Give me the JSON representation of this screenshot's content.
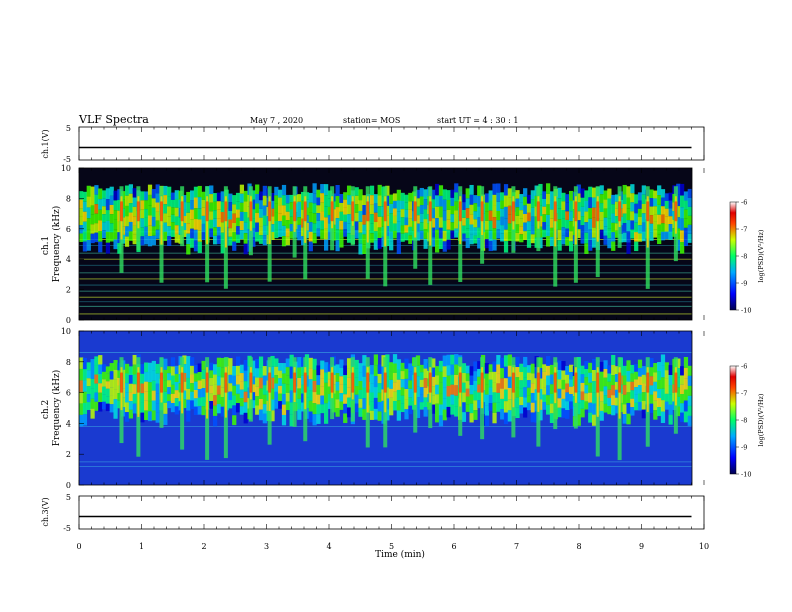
{
  "header": {
    "title": "VLF Spectra",
    "date": "May 7 , 2020",
    "station": "station= MOS",
    "start": "start UT = 4 : 30 : 1"
  },
  "chart_data": [
    {
      "type": "line",
      "name": "ch1-waveform",
      "ylabel": "ch.1(V)",
      "ylim": [
        -5,
        5
      ],
      "y_ticks": [
        "5",
        "-5"
      ],
      "xlim": [
        0,
        10
      ],
      "x": [
        0,
        9.8
      ],
      "values": [
        -1.2,
        -1.2
      ]
    },
    {
      "type": "heatmap",
      "name": "ch1-spectrogram",
      "ylabel": "ch.1\nFrequency (kHz)",
      "ylim": [
        0,
        10
      ],
      "y_ticks": [
        "0",
        "2",
        "4",
        "6",
        "8",
        "10"
      ],
      "xlim": [
        0,
        10
      ],
      "data_xmax": 9.8,
      "colorbar": {
        "label": "log(PSD)(V²/Hz)",
        "range": [
          -10,
          -6
        ],
        "ticks": [
          "-6",
          "-7",
          "-8",
          "-9",
          "-10"
        ]
      },
      "burst_times_min": [
        0.68,
        0.95,
        1.32,
        1.65,
        2.05,
        2.35,
        2.75,
        3.05,
        3.45,
        3.62,
        4.05,
        4.38,
        4.62,
        4.9,
        5.38,
        5.62,
        6.1,
        6.45,
        6.95,
        7.35,
        7.62,
        7.95,
        8.3,
        8.65,
        9.1,
        9.55
      ],
      "line_frequencies_khz": [
        0.4,
        0.9,
        1.2,
        1.5,
        1.9,
        2.3,
        2.7,
        3.1,
        3.6,
        4.0,
        4.4,
        4.9,
        5.3,
        5.8
      ],
      "band_khz": [
        5.5,
        9.0
      ]
    },
    {
      "type": "heatmap",
      "name": "ch2-spectrogram",
      "ylabel": "ch.2\nFrequency (kHz)",
      "ylim": [
        0,
        10
      ],
      "y_ticks": [
        "0",
        "2",
        "4",
        "6",
        "8",
        "10"
      ],
      "xlim": [
        0,
        10
      ],
      "data_xmax": 9.8,
      "colorbar": {
        "label": "log(PSD)(V²/Hz)",
        "range": [
          -10,
          -6
        ],
        "ticks": [
          "-6",
          "-7",
          "-8",
          "-9",
          "-10"
        ]
      },
      "burst_times_min": [
        0.68,
        0.95,
        1.32,
        1.65,
        2.05,
        2.35,
        2.75,
        3.05,
        3.45,
        3.62,
        4.05,
        4.38,
        4.62,
        4.9,
        5.38,
        5.62,
        6.1,
        6.45,
        6.95,
        7.35,
        7.62,
        7.95,
        8.3,
        8.65,
        9.1,
        9.55
      ],
      "line_frequencies_khz": [
        1.2,
        1.5,
        3.8,
        8.6
      ],
      "band_khz": [
        5.0,
        8.5
      ]
    },
    {
      "type": "line",
      "name": "ch3-waveform",
      "ylabel": "ch.3(V)",
      "ylim": [
        -5,
        5
      ],
      "y_ticks": [
        "5",
        "-5"
      ],
      "xlim": [
        0,
        10
      ],
      "x": [
        0,
        9.8
      ],
      "values": [
        -1.2,
        -1.2
      ],
      "xlabel": "Time (min)",
      "x_ticks": [
        "0",
        "1",
        "2",
        "3",
        "4",
        "5",
        "6",
        "7",
        "8",
        "9",
        "10"
      ]
    }
  ]
}
